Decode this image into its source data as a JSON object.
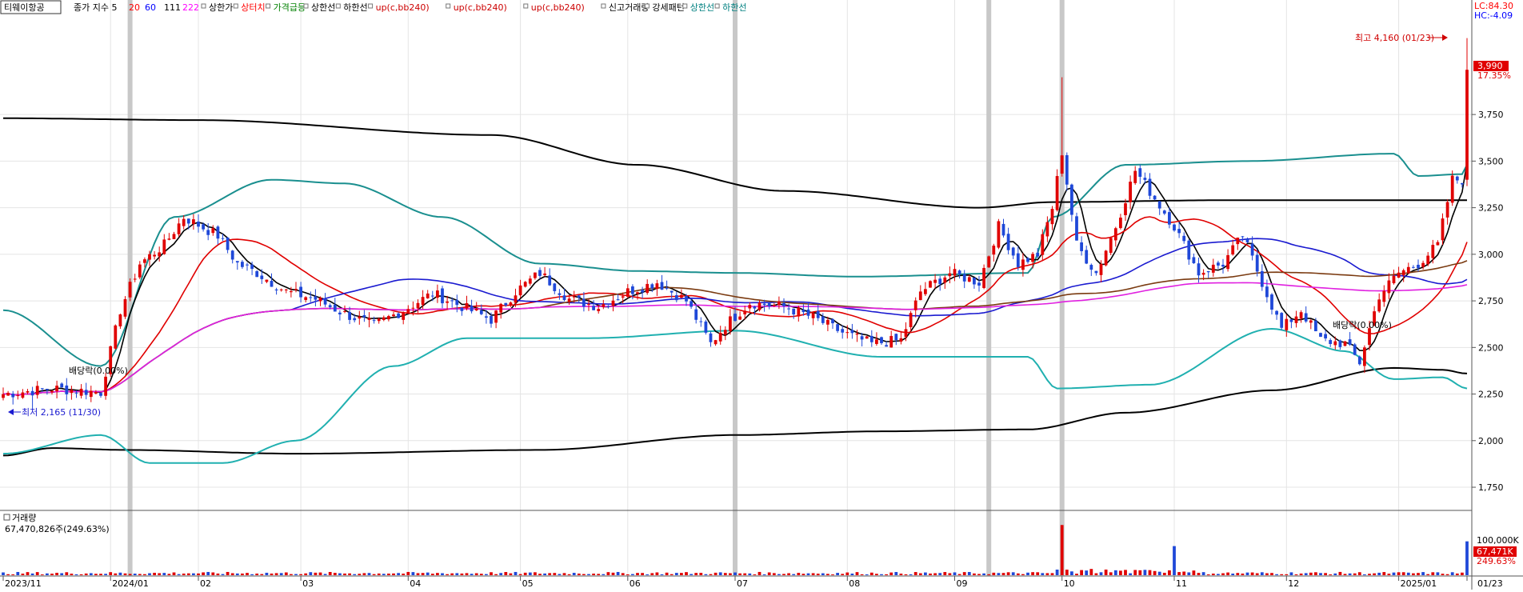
{
  "header": {
    "stock_name": "티웨이항공",
    "index_label": "종가 지수 5",
    "ma_periods": [
      "20",
      "60",
      "111",
      "222"
    ],
    "ma_colors": [
      "#ff0000",
      "#0000ff",
      "#000000",
      "#ff00ff"
    ],
    "items": [
      {
        "label": "상한가",
        "color": "#000000"
      },
      {
        "label": "상터치",
        "color": "#ff0000"
      },
      {
        "label": "가격급등",
        "color": "#008000"
      },
      {
        "label": "상한선",
        "color": "#000000"
      },
      {
        "label": "하한선",
        "color": "#000000"
      },
      {
        "label": "up(c,bb240)",
        "color": "#cc0000"
      },
      {
        "label": "up(c,bb240)",
        "color": "#cc0000"
      },
      {
        "label": "up(c,bb240)",
        "color": "#cc0000"
      },
      {
        "label": "신고거래량",
        "color": "#000000"
      },
      {
        "label": "강세패턴",
        "color": "#000000"
      },
      {
        "label": "상한선",
        "color": "#008080"
      },
      {
        "label": "하한선",
        "color": "#008080"
      }
    ],
    "lc_label": "LC:84.30",
    "hc_label": "HC:-4.09"
  },
  "annotations": {
    "high_label": "최고 4,160 (01/23)",
    "low_label": "최저 2,165 (11/30)",
    "dividend_label_1": "배당락(0.00%)",
    "dividend_label_2": "배당락(0.00%)"
  },
  "price_badge": {
    "value": "3,990",
    "change": "17.35%"
  },
  "volume_panel": {
    "title": "거래량",
    "value": "67,470,826주(249.63%)",
    "scale_label": "100,000K",
    "badge_value": "67,471K",
    "badge_change": "249.63%"
  },
  "colors": {
    "up": "#e00000",
    "down": "#1f48d8",
    "band_outer": "#000000",
    "band_inner": "#1a8f8f",
    "ma20": "#e00000",
    "ma60": "#1a1ad0",
    "ma111": "#7a3a10",
    "ma222": "#e020e0",
    "lower_inner": "#20b0b0"
  },
  "chart_data": {
    "type": "candlestick",
    "title": "",
    "y_ticks": [
      1750,
      2000,
      2250,
      2500,
      2750,
      3000,
      3250,
      3500,
      3750
    ],
    "y_tick_labels": [
      "1,750",
      "2,000",
      "2,250",
      "2,500",
      "2,750",
      "3,000",
      "3,250",
      "3,500",
      "3,750"
    ],
    "ylim": [
      1660,
      4270
    ],
    "x_axis_labels": [
      "2023/11",
      "2024/01",
      "02",
      "03",
      "04",
      "05",
      "06",
      "07",
      "08",
      "09",
      "10",
      "11",
      "12",
      "2025/01",
      "01/23"
    ],
    "high": {
      "value": 4160,
      "date": "01/23"
    },
    "low": {
      "value": 2165,
      "date": "11/30"
    },
    "last_close": 3990,
    "change_pct": 17.35,
    "month_start_index": [
      0,
      22,
      40,
      61,
      83,
      106,
      128,
      150,
      173,
      195,
      217,
      240,
      263,
      286,
      300
    ],
    "bars_shown": 301,
    "anchors": [
      {
        "i": 0,
        "c": 2250
      },
      {
        "i": 10,
        "c": 2280
      },
      {
        "i": 20,
        "c": 2260
      },
      {
        "i": 24,
        "c": 2700
      },
      {
        "i": 28,
        "c": 2950
      },
      {
        "i": 33,
        "c": 3050
      },
      {
        "i": 37,
        "c": 3200
      },
      {
        "i": 44,
        "c": 3100
      },
      {
        "i": 48,
        "c": 2950
      },
      {
        "i": 52,
        "c": 2900
      },
      {
        "i": 58,
        "c": 2800
      },
      {
        "i": 64,
        "c": 2760
      },
      {
        "i": 70,
        "c": 2680
      },
      {
        "i": 76,
        "c": 2620
      },
      {
        "i": 82,
        "c": 2700
      },
      {
        "i": 88,
        "c": 2790
      },
      {
        "i": 94,
        "c": 2720
      },
      {
        "i": 100,
        "c": 2650
      },
      {
        "i": 105,
        "c": 2800
      },
      {
        "i": 110,
        "c": 2900
      },
      {
        "i": 116,
        "c": 2760
      },
      {
        "i": 122,
        "c": 2720
      },
      {
        "i": 128,
        "c": 2800
      },
      {
        "i": 134,
        "c": 2850
      },
      {
        "i": 140,
        "c": 2750
      },
      {
        "i": 145,
        "c": 2520
      },
      {
        "i": 148,
        "c": 2620
      },
      {
        "i": 153,
        "c": 2740
      },
      {
        "i": 160,
        "c": 2720
      },
      {
        "i": 166,
        "c": 2660
      },
      {
        "i": 172,
        "c": 2580
      },
      {
        "i": 178,
        "c": 2520
      },
      {
        "i": 184,
        "c": 2540
      },
      {
        "i": 188,
        "c": 2800
      },
      {
        "i": 194,
        "c": 2900
      },
      {
        "i": 200,
        "c": 2850
      },
      {
        "i": 204,
        "c": 3150
      },
      {
        "i": 208,
        "c": 2950
      },
      {
        "i": 212,
        "c": 3000
      },
      {
        "i": 215,
        "c": 3250
      },
      {
        "i": 217,
        "c": 3550
      },
      {
        "i": 220,
        "c": 3050
      },
      {
        "i": 224,
        "c": 2900
      },
      {
        "i": 228,
        "c": 3150
      },
      {
        "i": 232,
        "c": 3450
      },
      {
        "i": 236,
        "c": 3300
      },
      {
        "i": 240,
        "c": 3150
      },
      {
        "i": 245,
        "c": 2900
      },
      {
        "i": 250,
        "c": 2950
      },
      {
        "i": 254,
        "c": 3100
      },
      {
        "i": 258,
        "c": 2850
      },
      {
        "i": 262,
        "c": 2600
      },
      {
        "i": 266,
        "c": 2700
      },
      {
        "i": 270,
        "c": 2540
      },
      {
        "i": 275,
        "c": 2520
      },
      {
        "i": 278,
        "c": 2420
      },
      {
        "i": 282,
        "c": 2780
      },
      {
        "i": 286,
        "c": 2900
      },
      {
        "i": 290,
        "c": 2950
      },
      {
        "i": 294,
        "c": 3050
      },
      {
        "i": 297,
        "c": 3400
      },
      {
        "i": 299,
        "c": 3400
      },
      {
        "i": 300,
        "c": 3990
      }
    ],
    "bands": {
      "outer_upper": [
        [
          0,
          3730
        ],
        [
          40,
          3720
        ],
        [
          100,
          3640
        ],
        [
          130,
          3480
        ],
        [
          160,
          3340
        ],
        [
          200,
          3250
        ],
        [
          215,
          3280
        ],
        [
          250,
          3290
        ],
        [
          300,
          3290
        ]
      ],
      "outer_lower": [
        [
          0,
          1920
        ],
        [
          10,
          1960
        ],
        [
          25,
          1950
        ],
        [
          60,
          1930
        ],
        [
          110,
          1950
        ],
        [
          150,
          2030
        ],
        [
          180,
          2050
        ],
        [
          210,
          2060
        ],
        [
          230,
          2150
        ],
        [
          260,
          2270
        ],
        [
          285,
          2390
        ],
        [
          295,
          2380
        ],
        [
          300,
          2360
        ]
      ],
      "inner_upper": [
        [
          0,
          2700
        ],
        [
          20,
          2400
        ],
        [
          35,
          3200
        ],
        [
          55,
          3400
        ],
        [
          70,
          3380
        ],
        [
          90,
          3200
        ],
        [
          110,
          2950
        ],
        [
          130,
          2910
        ],
        [
          150,
          2900
        ],
        [
          175,
          2880
        ],
        [
          210,
          2900
        ],
        [
          215,
          3200
        ],
        [
          230,
          3480
        ],
        [
          255,
          3500
        ],
        [
          285,
          3540
        ],
        [
          290,
          3420
        ],
        [
          299,
          3430
        ],
        [
          300,
          3480
        ]
      ],
      "inner_lower": [
        [
          0,
          1930
        ],
        [
          20,
          2030
        ],
        [
          30,
          1880
        ],
        [
          45,
          1880
        ],
        [
          60,
          2000
        ],
        [
          80,
          2400
        ],
        [
          95,
          2550
        ],
        [
          120,
          2550
        ],
        [
          150,
          2590
        ],
        [
          180,
          2450
        ],
        [
          210,
          2450
        ],
        [
          216,
          2280
        ],
        [
          235,
          2300
        ],
        [
          260,
          2600
        ],
        [
          275,
          2480
        ],
        [
          285,
          2330
        ],
        [
          295,
          2340
        ],
        [
          300,
          2280
        ]
      ]
    },
    "volume_spikes": [
      {
        "i": 217,
        "v": 100000
      },
      {
        "i": 240,
        "v": 58000
      },
      {
        "i": 300,
        "v": 67471
      }
    ]
  }
}
